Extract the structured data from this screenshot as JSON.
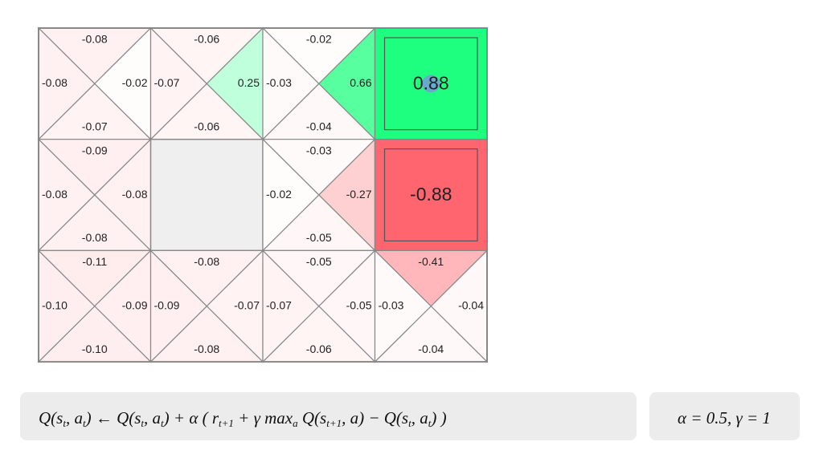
{
  "grid": {
    "rows": [
      [
        {
          "type": "q",
          "up": "-0.08",
          "left": "-0.08",
          "right": "-0.02",
          "down": "-0.07"
        },
        {
          "type": "q",
          "up": "-0.06",
          "left": "-0.07",
          "right": "0.25",
          "down": "-0.06"
        },
        {
          "type": "q",
          "up": "-0.02",
          "left": "-0.03",
          "right": "0.66",
          "down": "-0.04"
        },
        {
          "type": "terminal",
          "value": "0.88",
          "agent": true
        }
      ],
      [
        {
          "type": "q",
          "up": "-0.09",
          "left": "-0.08",
          "right": "-0.08",
          "down": "-0.08"
        },
        {
          "type": "wall"
        },
        {
          "type": "q",
          "up": "-0.03",
          "left": "-0.02",
          "right": "-0.27",
          "down": "-0.05"
        },
        {
          "type": "terminal",
          "value": "-0.88"
        }
      ],
      [
        {
          "type": "q",
          "up": "-0.11",
          "left": "-0.10",
          "right": "-0.09",
          "down": "-0.10"
        },
        {
          "type": "q",
          "up": "-0.08",
          "left": "-0.09",
          "right": "-0.07",
          "down": "-0.08"
        },
        {
          "type": "q",
          "up": "-0.05",
          "left": "-0.07",
          "right": "-0.05",
          "down": "-0.06"
        },
        {
          "type": "q",
          "up": "-0.41",
          "left": "-0.03",
          "right": "-0.04",
          "down": "-0.04"
        }
      ]
    ]
  },
  "formula": [
    "Q(s",
    "t",
    ", a",
    "t",
    ")  ← Q(s",
    "t",
    ", a",
    "t",
    ") + α ( r",
    "t+1",
    " + γ max",
    "a",
    " Q(s",
    "t+1",
    ", a) − Q(s",
    "t",
    ", a",
    "t",
    ") )"
  ],
  "parameters": "α = 0.5,  γ = 1"
}
